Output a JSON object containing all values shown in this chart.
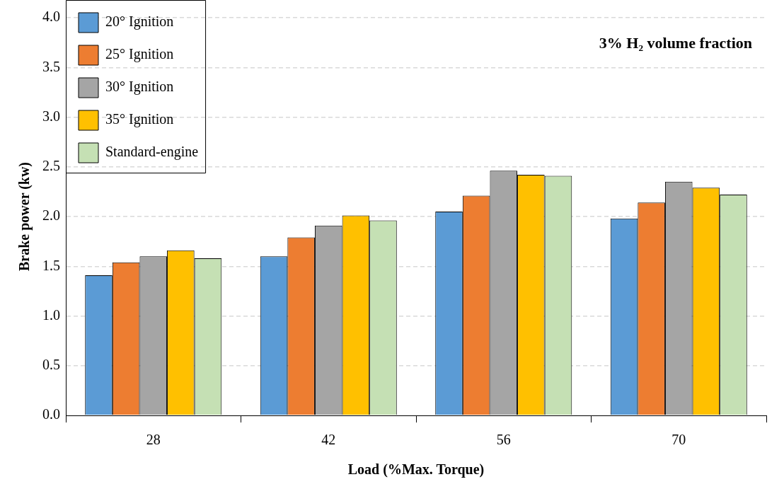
{
  "chart_data": {
    "type": "bar",
    "title": "3% H₂ volume fraction",
    "xlabel": "Load (%Max. Torque)",
    "ylabel": "Brake power (kw)",
    "categories": [
      "28",
      "42",
      "56",
      "70"
    ],
    "series": [
      {
        "name": "20° Ignition",
        "color": "#5b9bd5",
        "values": [
          1.41,
          1.6,
          2.05,
          1.98
        ]
      },
      {
        "name": "25° Ignition",
        "color": "#ed7d31",
        "values": [
          1.54,
          1.79,
          2.21,
          2.14
        ]
      },
      {
        "name": "30° Ignition",
        "color": "#a5a5a5",
        "values": [
          1.6,
          1.91,
          2.46,
          2.35
        ]
      },
      {
        "name": "35° Ignition",
        "color": "#ffc000",
        "values": [
          1.66,
          2.01,
          2.42,
          2.29
        ]
      },
      {
        "name": "Standard-engine",
        "color": "#c5e0b4",
        "values": [
          1.58,
          1.96,
          2.41,
          2.22
        ]
      }
    ],
    "ylim": [
      0,
      4
    ],
    "yticks": [
      {
        "value": 0,
        "label": "0.0"
      },
      {
        "value": 0.5,
        "label": "0.5"
      },
      {
        "value": 1,
        "label": "1.0"
      },
      {
        "value": 1.5,
        "label": "1.5"
      },
      {
        "value": 2,
        "label": "2.0"
      },
      {
        "value": 2.5,
        "label": "2.5"
      },
      {
        "value": 3,
        "label": "3.0"
      },
      {
        "value": 3.5,
        "label": "3.5"
      },
      {
        "value": 4,
        "label": "4.0"
      }
    ],
    "grid": "y",
    "legend": "top left"
  }
}
